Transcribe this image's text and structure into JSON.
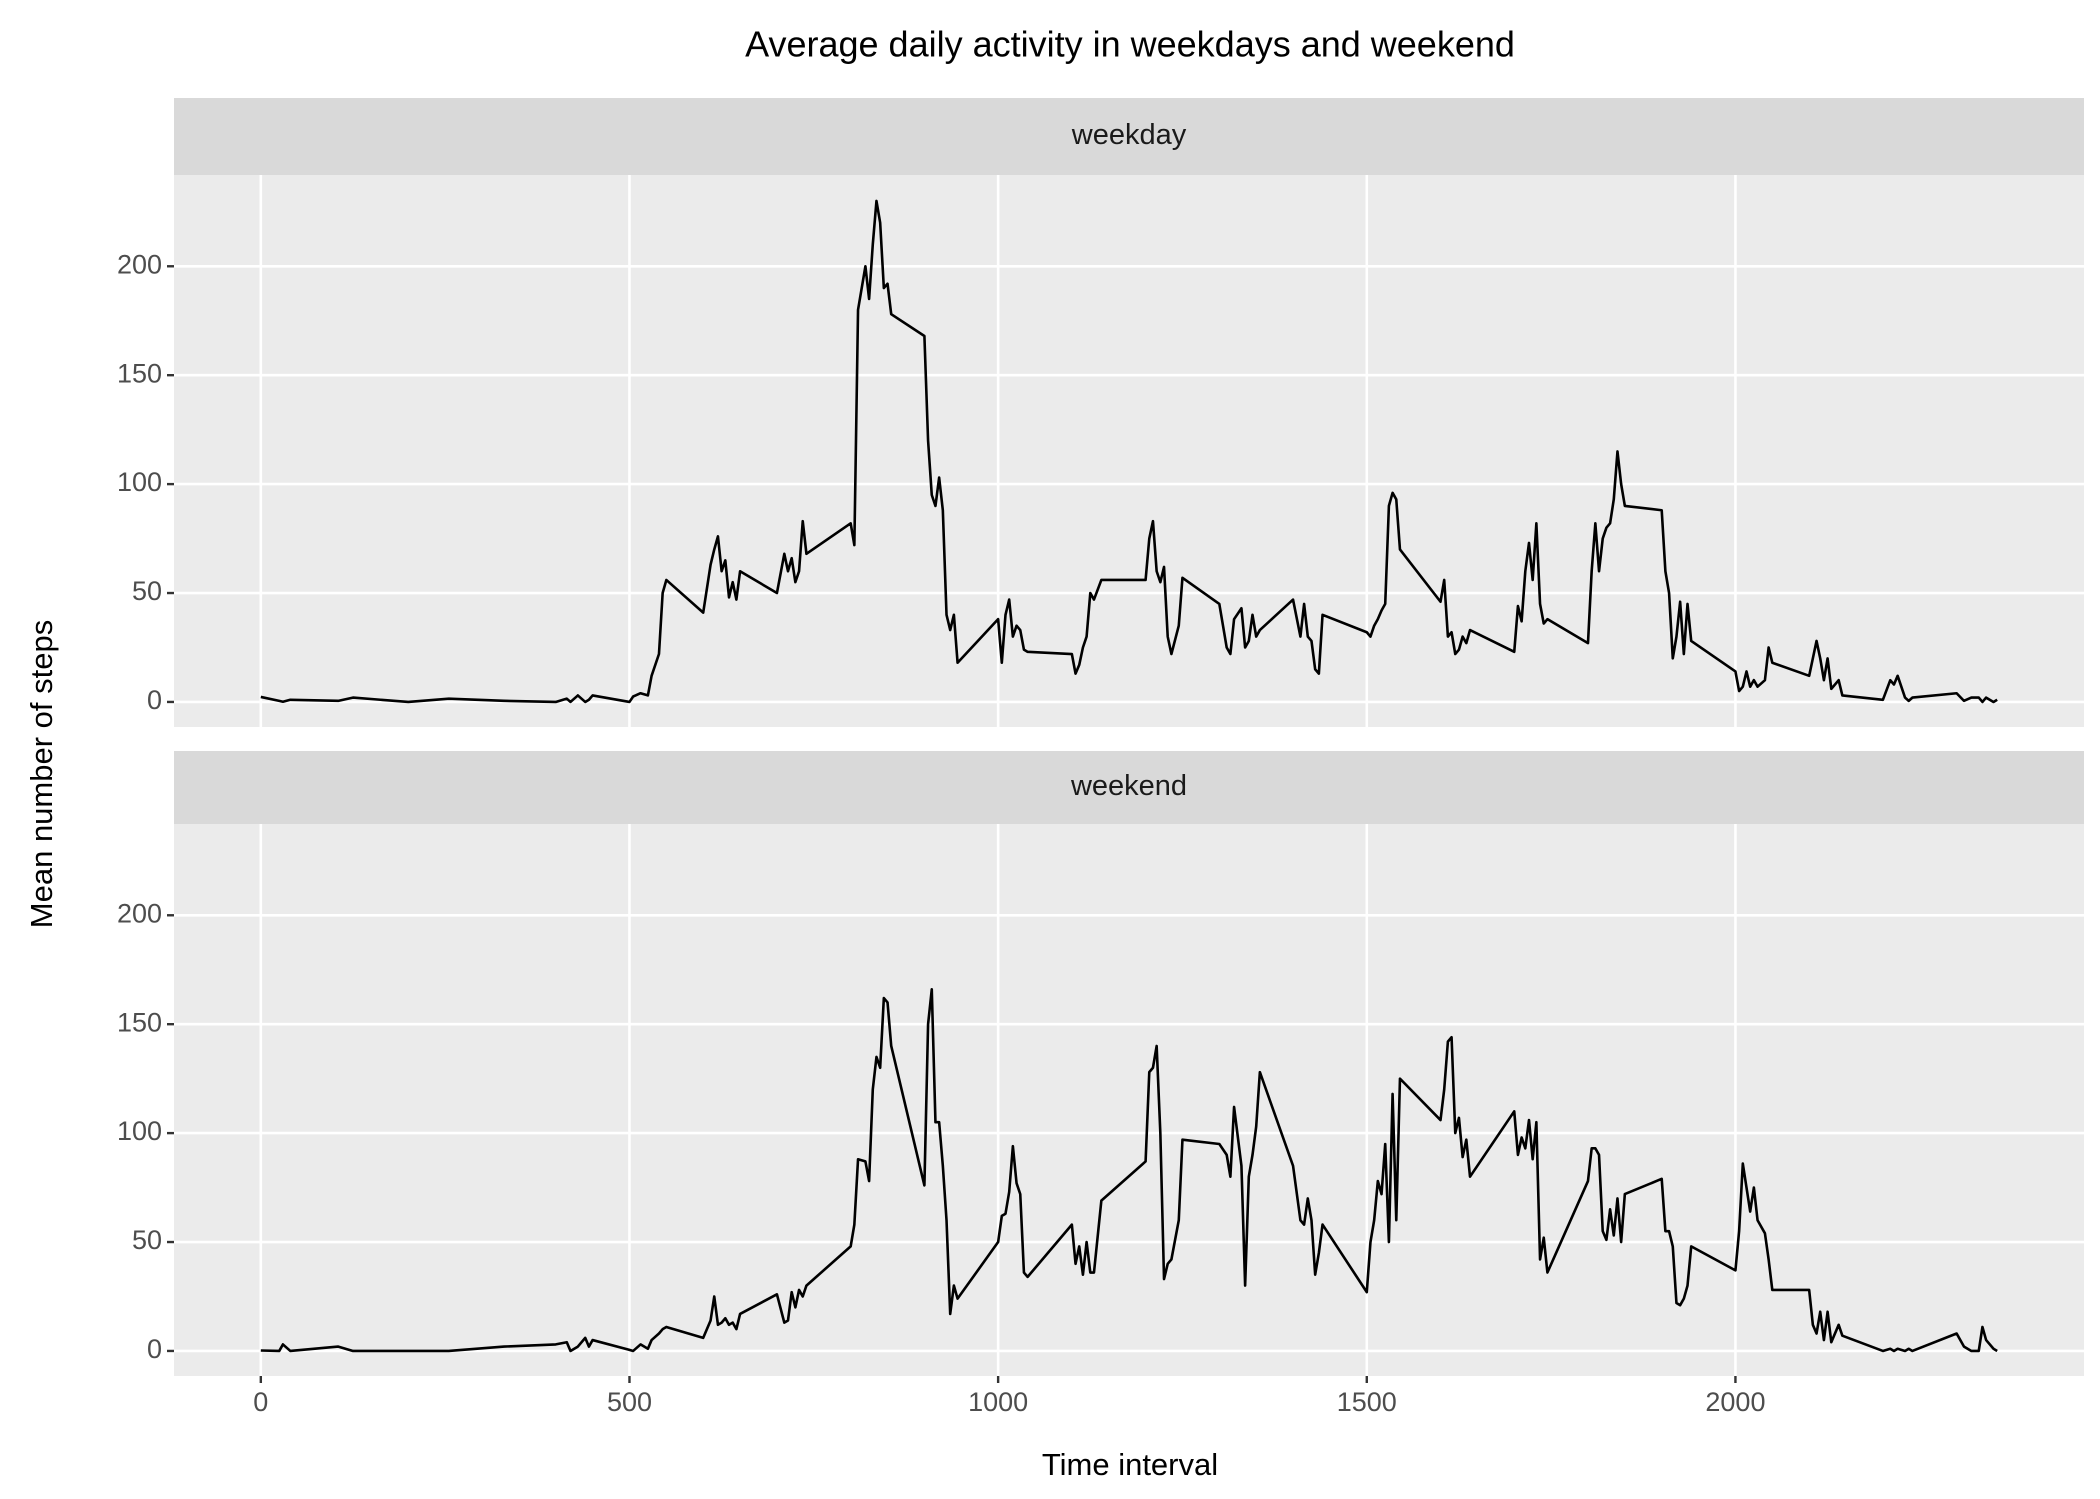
{
  "chart_data": {
    "type": "line",
    "title": "Average daily activity in weekdays and weekend",
    "xlabel": "Time interval",
    "ylabel": "Mean number of steps",
    "xlim": [
      -117.75,
      2472.75
    ],
    "xticks": [
      0,
      500,
      1000,
      1500,
      2000
    ],
    "ylim": [
      -11.5,
      241.9
    ],
    "yticks": [
      0,
      50,
      100,
      150,
      200
    ],
    "grid": true,
    "x": [
      0,
      25,
      30,
      40,
      105,
      125,
      200,
      255,
      330,
      400,
      415,
      420,
      430,
      440,
      445,
      450,
      500,
      505,
      515,
      525,
      530,
      540,
      545,
      550,
      600,
      610,
      615,
      620,
      625,
      630,
      635,
      640,
      645,
      650,
      700,
      710,
      715,
      720,
      725,
      730,
      735,
      740,
      800,
      805,
      810,
      820,
      825,
      830,
      835,
      840,
      845,
      850,
      855,
      900,
      905,
      910,
      915,
      920,
      925,
      930,
      935,
      940,
      945,
      1000,
      1005,
      1010,
      1015,
      1020,
      1025,
      1030,
      1035,
      1040,
      1100,
      1105,
      1110,
      1115,
      1120,
      1125,
      1130,
      1140,
      1200,
      1205,
      1210,
      1215,
      1220,
      1225,
      1230,
      1235,
      1245,
      1250,
      1300,
      1310,
      1315,
      1320,
      1330,
      1335,
      1340,
      1345,
      1350,
      1355,
      1400,
      1410,
      1415,
      1420,
      1425,
      1430,
      1435,
      1440,
      1500,
      1505,
      1510,
      1515,
      1520,
      1525,
      1530,
      1535,
      1540,
      1545,
      1600,
      1605,
      1610,
      1615,
      1620,
      1625,
      1630,
      1635,
      1640,
      1700,
      1705,
      1710,
      1715,
      1720,
      1725,
      1730,
      1735,
      1740,
      1745,
      1800,
      1805,
      1810,
      1815,
      1820,
      1825,
      1830,
      1835,
      1840,
      1845,
      1850,
      1900,
      1905,
      1910,
      1915,
      1920,
      1925,
      1930,
      1935,
      1940,
      2000,
      2005,
      2010,
      2015,
      2020,
      2025,
      2030,
      2040,
      2045,
      2050,
      2100,
      2105,
      2110,
      2115,
      2120,
      2125,
      2130,
      2140,
      2145,
      2200,
      2210,
      2215,
      2220,
      2230,
      2235,
      2240,
      2300,
      2310,
      2320,
      2330,
      2335,
      2340,
      2350,
      2355
    ],
    "series": [
      {
        "name": "weekday",
        "color": "#000000",
        "values": [
          2.3,
          0.5,
          0.1,
          1,
          0.5,
          2,
          0,
          1.5,
          0.5,
          0,
          1.5,
          0,
          3,
          0,
          1,
          3,
          0,
          2.5,
          4,
          3,
          12,
          22,
          50,
          56,
          41,
          63,
          70,
          76,
          60,
          65,
          48,
          55,
          47,
          60,
          50,
          68,
          60,
          66,
          55,
          60,
          83,
          68,
          82,
          72,
          180,
          200,
          185,
          210,
          230,
          220,
          190,
          192,
          178,
          168,
          120,
          95,
          90,
          103,
          88,
          40,
          33,
          40,
          18,
          38,
          18,
          40,
          47,
          30,
          35,
          33,
          24,
          23,
          22,
          13,
          17,
          25,
          30,
          50,
          47,
          56,
          56,
          75,
          83,
          60,
          55,
          62,
          30,
          22,
          35,
          57,
          45,
          25,
          22,
          38,
          43,
          25,
          28,
          40,
          30,
          33,
          47,
          30,
          45,
          30,
          28,
          15,
          13,
          40,
          32,
          30,
          35,
          38,
          42,
          45,
          90,
          96,
          93,
          70,
          46,
          56,
          30,
          32,
          22,
          24,
          30,
          27,
          33,
          23,
          44,
          37,
          60,
          73,
          56,
          82,
          45,
          36,
          38,
          27,
          60,
          82,
          60,
          75,
          80,
          82,
          93,
          115,
          100,
          90,
          88,
          60,
          50,
          20,
          30,
          46,
          22,
          45,
          28,
          14,
          5,
          7,
          14,
          7,
          10,
          7,
          10,
          25,
          18,
          12,
          20,
          28,
          20,
          10,
          20,
          6,
          10,
          3,
          1,
          10,
          8,
          12,
          2,
          0.5,
          2,
          4,
          0.5,
          2,
          2,
          0,
          2,
          0,
          1
        ]
      },
      {
        "name": "weekend",
        "color": "#000000",
        "values": [
          0.2,
          0,
          3,
          0,
          2,
          0,
          0,
          0,
          2,
          3,
          4,
          0,
          2,
          6,
          2,
          5,
          0.5,
          0,
          3,
          1,
          5,
          8,
          10,
          11,
          6,
          14,
          25,
          12,
          13,
          15,
          12,
          13,
          10,
          17,
          26,
          13,
          14,
          27,
          20,
          28,
          25,
          30,
          48,
          58,
          88,
          87,
          78,
          120,
          135,
          130,
          162,
          160,
          140,
          76,
          150,
          166,
          105,
          105,
          85,
          60,
          17,
          30,
          24,
          50,
          62,
          63,
          73,
          94,
          77,
          72,
          36,
          34,
          58,
          40,
          48,
          35,
          50,
          36,
          36,
          69,
          87,
          128,
          130,
          140,
          100,
          33,
          40,
          42,
          60,
          97,
          95,
          90,
          80,
          112,
          85,
          30,
          80,
          90,
          103,
          128,
          85,
          60,
          58,
          70,
          60,
          35,
          45,
          58,
          27,
          50,
          60,
          78,
          72,
          95,
          50,
          118,
          60,
          125,
          106,
          120,
          142,
          144,
          100,
          107,
          89,
          97,
          80,
          110,
          90,
          98,
          93,
          106,
          88,
          105,
          42,
          52,
          36,
          78,
          93,
          93,
          90,
          55,
          51,
          65,
          53,
          70,
          50,
          72,
          79,
          55,
          55,
          48,
          22,
          21,
          24,
          30,
          48,
          37,
          55,
          86,
          75,
          64,
          75,
          60,
          54,
          42,
          28,
          28,
          12,
          8,
          18,
          5,
          18,
          4,
          12,
          7,
          0,
          1,
          0,
          1,
          0,
          1,
          0,
          8,
          2,
          0,
          0,
          11,
          5,
          1,
          0
        ]
      }
    ]
  }
}
